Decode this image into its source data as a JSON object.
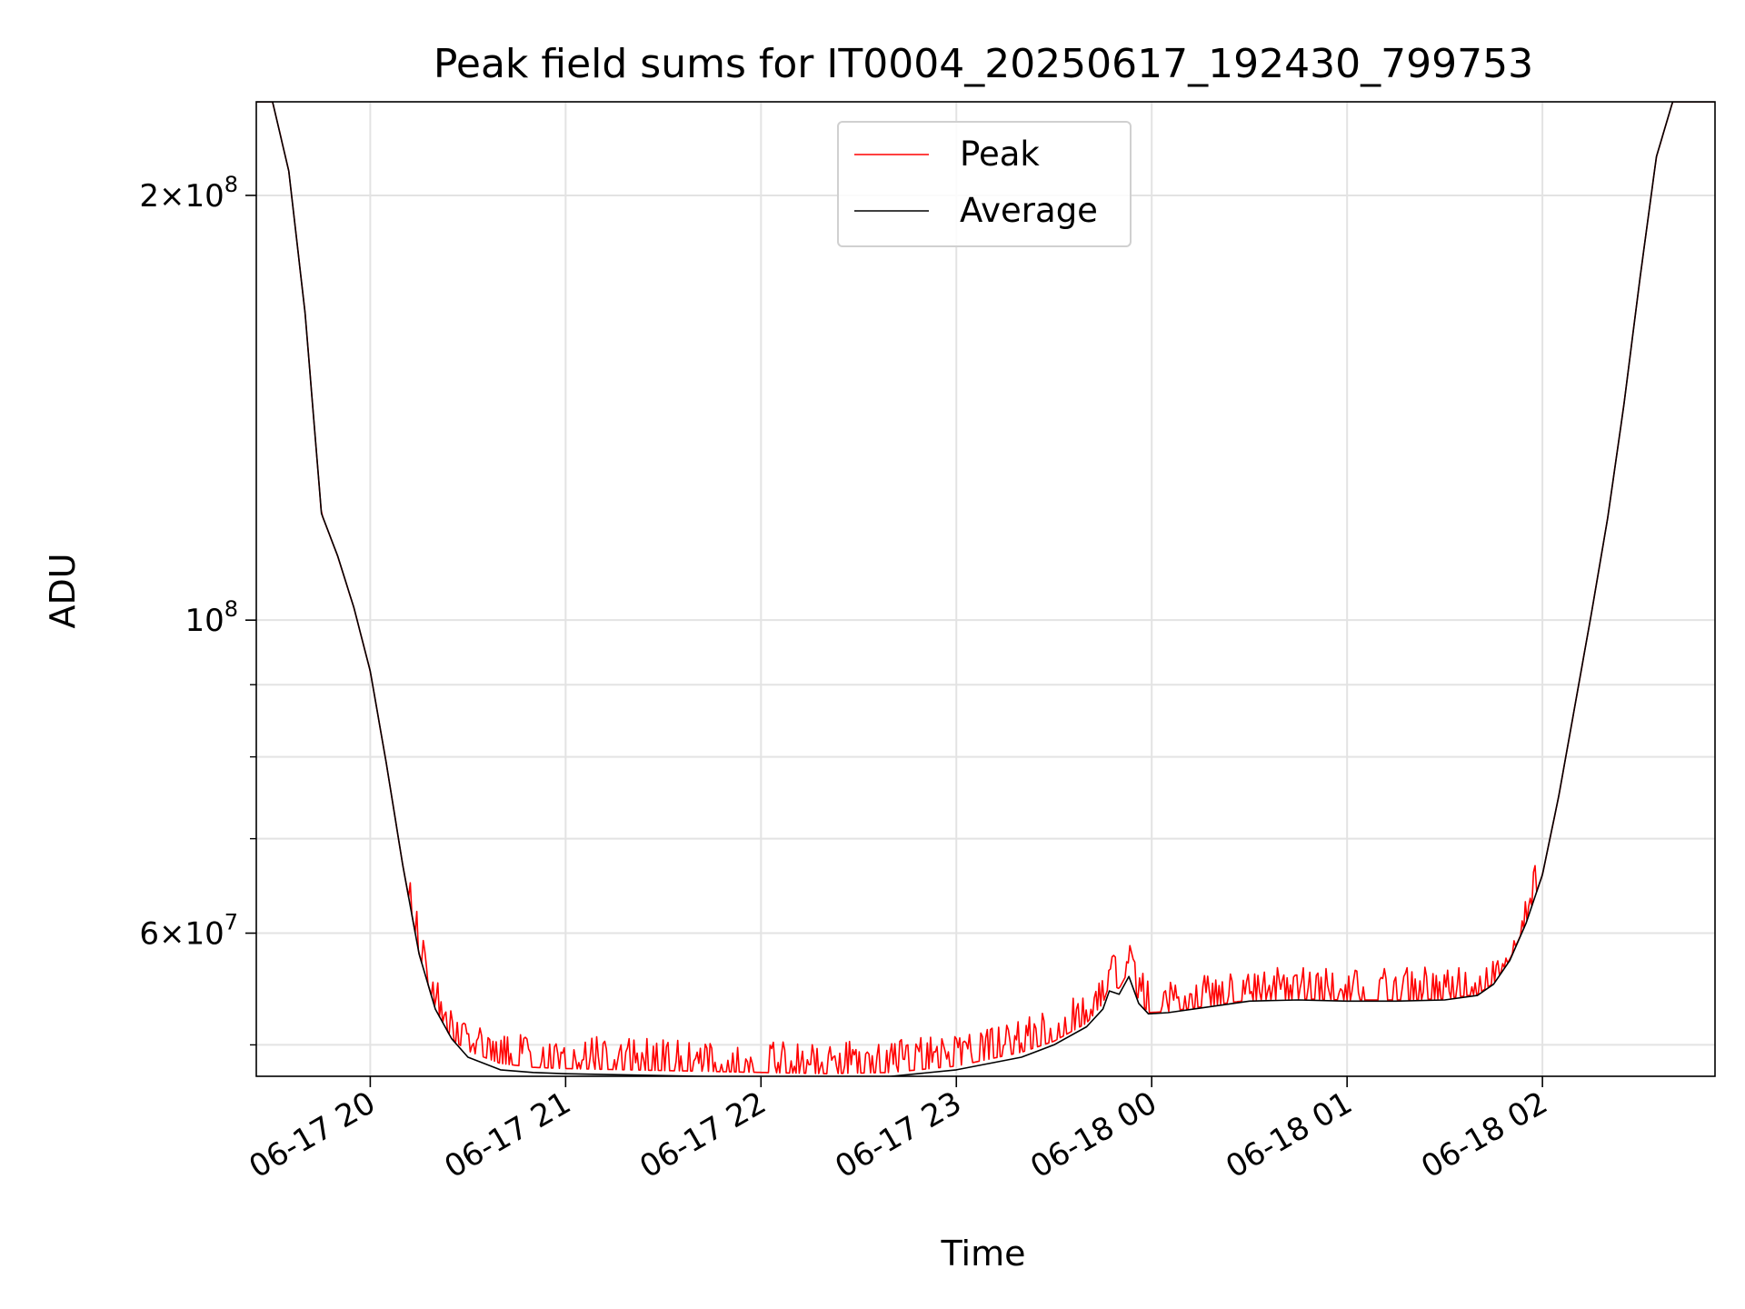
{
  "chart_data": {
    "type": "line",
    "title": "Peak field sums for IT0004_20250617_192430_799753",
    "xlabel": "Time",
    "ylabel": "ADU",
    "yscale": "log",
    "ylim": [
      47500000,
      233000000
    ],
    "xlim": [
      "2025-06-17 19:25",
      "2025-06-18 02:53"
    ],
    "grid": true,
    "legend_position": "upper center",
    "x_ticks": [
      {
        "t": "2025-06-17 20:00",
        "label": "06-17 20"
      },
      {
        "t": "2025-06-17 21:00",
        "label": "06-17 21"
      },
      {
        "t": "2025-06-17 22:00",
        "label": "06-17 22"
      },
      {
        "t": "2025-06-17 23:00",
        "label": "06-17 23"
      },
      {
        "t": "2025-06-18 00:00",
        "label": "06-18 00"
      },
      {
        "t": "2025-06-18 01:00",
        "label": "06-18 01"
      },
      {
        "t": "2025-06-18 02:00",
        "label": "06-18 02"
      }
    ],
    "y_ticks": [
      {
        "v": 60000000,
        "base": "6",
        "exp": "7"
      },
      {
        "v": 100000000,
        "base": "",
        "exp": "8"
      },
      {
        "v": 200000000,
        "base": "2",
        "exp": "8"
      }
    ],
    "y_minor_ticks": [
      50000000,
      70000000,
      80000000,
      90000000
    ],
    "series": [
      {
        "name": "Peak",
        "color": "#ff0000",
        "spiky": true,
        "x": [
          "2025-06-17 19:25",
          "2025-06-17 19:30",
          "2025-06-17 19:35",
          "2025-06-17 19:40",
          "2025-06-17 19:45",
          "2025-06-17 19:50",
          "2025-06-17 19:55",
          "2025-06-17 20:00",
          "2025-06-17 20:05",
          "2025-06-17 20:10",
          "2025-06-17 20:15",
          "2025-06-17 20:20",
          "2025-06-17 20:25",
          "2025-06-17 20:30",
          "2025-06-17 20:40",
          "2025-06-17 20:50",
          "2025-06-17 21:00",
          "2025-06-17 21:20",
          "2025-06-17 21:40",
          "2025-06-17 22:00",
          "2025-06-17 22:20",
          "2025-06-17 22:40",
          "2025-06-17 23:00",
          "2025-06-17 23:20",
          "2025-06-17 23:30",
          "2025-06-17 23:40",
          "2025-06-17 23:45",
          "2025-06-17 23:47",
          "2025-06-17 23:50",
          "2025-06-17 23:53",
          "2025-06-17 23:56",
          "2025-06-17 23:59",
          "2025-06-18 00:05",
          "2025-06-18 00:15",
          "2025-06-18 00:30",
          "2025-06-18 00:45",
          "2025-06-18 01:00",
          "2025-06-18 01:15",
          "2025-06-18 01:30",
          "2025-06-18 01:40",
          "2025-06-18 01:45",
          "2025-06-18 01:50",
          "2025-06-18 01:55",
          "2025-06-18 02:00",
          "2025-06-18 02:05",
          "2025-06-18 02:10",
          "2025-06-18 02:15",
          "2025-06-18 02:20",
          "2025-06-18 02:25",
          "2025-06-18 02:30",
          "2025-06-18 02:35",
          "2025-06-18 02:40",
          "2025-06-18 02:45",
          "2025-06-18 02:53"
        ],
        "y": [
          233000000,
          233000000,
          208000000,
          165000000,
          119000000,
          111000000,
          102000000,
          92000000,
          79000000,
          67000000,
          58000000,
          53000000,
          50500000,
          49500000,
          48500000,
          48200000,
          48100000,
          48000000,
          47900000,
          47800000,
          47700000,
          47800000,
          48300000,
          49400000,
          50300000,
          51800000,
          53500000,
          55200000,
          54800000,
          56500000,
          53800000,
          52700000,
          52800000,
          53200000,
          53800000,
          53900000,
          53800000,
          53800000,
          53900000,
          54300000,
          55300000,
          57500000,
          61000000,
          66000000,
          75000000,
          87000000,
          101000000,
          118000000,
          142000000,
          175000000,
          213000000,
          233000000,
          233000000,
          233000000
        ]
      },
      {
        "name": "Average",
        "color": "#000000",
        "spiky": false,
        "x": [
          "2025-06-17 19:25",
          "2025-06-17 19:30",
          "2025-06-17 19:35",
          "2025-06-17 19:40",
          "2025-06-17 19:45",
          "2025-06-17 19:50",
          "2025-06-17 19:55",
          "2025-06-17 20:00",
          "2025-06-17 20:05",
          "2025-06-17 20:10",
          "2025-06-17 20:15",
          "2025-06-17 20:20",
          "2025-06-17 20:25",
          "2025-06-17 20:30",
          "2025-06-17 20:40",
          "2025-06-17 20:50",
          "2025-06-17 21:00",
          "2025-06-17 21:20",
          "2025-06-17 21:40",
          "2025-06-17 22:00",
          "2025-06-17 22:20",
          "2025-06-17 22:40",
          "2025-06-17 23:00",
          "2025-06-17 23:20",
          "2025-06-17 23:30",
          "2025-06-17 23:40",
          "2025-06-17 23:45",
          "2025-06-17 23:47",
          "2025-06-17 23:50",
          "2025-06-17 23:53",
          "2025-06-17 23:56",
          "2025-06-17 23:59",
          "2025-06-18 00:05",
          "2025-06-18 00:15",
          "2025-06-18 00:30",
          "2025-06-18 00:45",
          "2025-06-18 01:00",
          "2025-06-18 01:15",
          "2025-06-18 01:30",
          "2025-06-18 01:40",
          "2025-06-18 01:45",
          "2025-06-18 01:50",
          "2025-06-18 01:55",
          "2025-06-18 02:00",
          "2025-06-18 02:05",
          "2025-06-18 02:10",
          "2025-06-18 02:15",
          "2025-06-18 02:20",
          "2025-06-18 02:25",
          "2025-06-18 02:30",
          "2025-06-18 02:35",
          "2025-06-18 02:40",
          "2025-06-18 02:45",
          "2025-06-18 02:53"
        ],
        "y": [
          233000000,
          233000000,
          208000000,
          165000000,
          119000000,
          111000000,
          102000000,
          92000000,
          79000000,
          67000000,
          58000000,
          53000000,
          50500000,
          49000000,
          48000000,
          47800000,
          47700000,
          47600000,
          47500000,
          47400000,
          47400000,
          47500000,
          48000000,
          49000000,
          50000000,
          51500000,
          53000000,
          54600000,
          54300000,
          55900000,
          53500000,
          52600000,
          52700000,
          53100000,
          53700000,
          53800000,
          53700000,
          53700000,
          53800000,
          54200000,
          55200000,
          57400000,
          61000000,
          66000000,
          75000000,
          87000000,
          101000000,
          118000000,
          142000000,
          175000000,
          213000000,
          233000000,
          233000000,
          233000000
        ]
      }
    ]
  }
}
